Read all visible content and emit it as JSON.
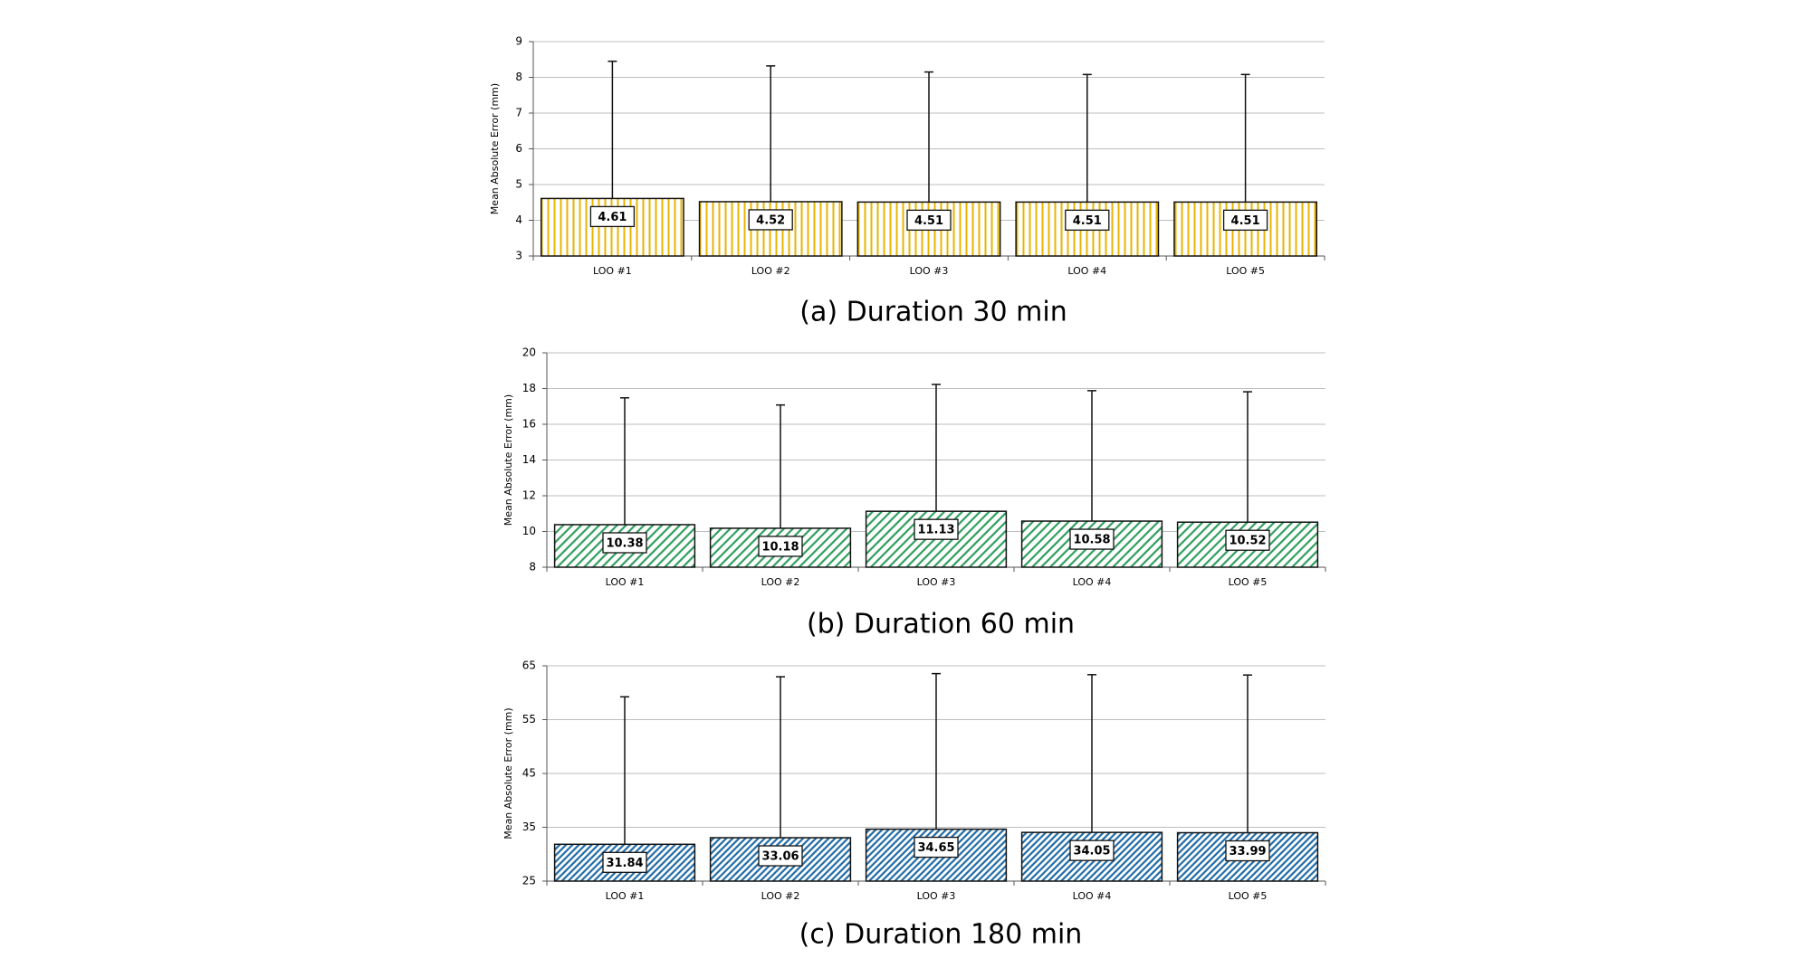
{
  "chart_data": [
    {
      "type": "bar",
      "caption": "(a) Duration 30 min",
      "y_label": "Mean Absolute Error (mm)",
      "categories": [
        "LOO #1",
        "LOO #2",
        "LOO #3",
        "LOO #4",
        "LOO #5"
      ],
      "values": [
        4.61,
        4.52,
        4.51,
        4.51,
        4.51
      ],
      "errors": [
        3.84,
        3.8,
        3.64,
        3.57,
        3.57
      ],
      "color": "#e8b400",
      "hatch": "vertical",
      "ylim": [
        3,
        9
      ],
      "yticks": [
        3,
        4,
        5,
        6,
        7,
        8,
        9
      ],
      "grid": true
    },
    {
      "type": "bar",
      "caption": "(b) Duration 60 min",
      "y_label": "Mean Absolute Error (mm)",
      "categories": [
        "LOO #1",
        "LOO #2",
        "LOO #3",
        "LOO #4",
        "LOO #5"
      ],
      "values": [
        10.38,
        10.18,
        11.13,
        10.58,
        10.52
      ],
      "errors": [
        7.1,
        6.9,
        7.1,
        7.3,
        7.3
      ],
      "color": "#2f9e5e",
      "hatch": "diagonal",
      "ylim": [
        8,
        20
      ],
      "yticks": [
        8,
        10,
        12,
        14,
        16,
        18,
        20
      ],
      "grid": true
    },
    {
      "type": "bar",
      "caption": "(c) Duration 180 min",
      "y_label": "Mean Absolute Error (mm)",
      "categories": [
        "LOO #1",
        "LOO #2",
        "LOO #3",
        "LOO #4",
        "LOO #5"
      ],
      "values": [
        31.84,
        33.06,
        34.65,
        34.05,
        33.99
      ],
      "errors": [
        27.4,
        29.9,
        28.9,
        29.3,
        29.3
      ],
      "color": "#1f6aa5",
      "hatch": "dense-diagonal",
      "ylim": [
        25,
        65
      ],
      "yticks": [
        25,
        35,
        45,
        55,
        65
      ],
      "grid": true
    }
  ]
}
